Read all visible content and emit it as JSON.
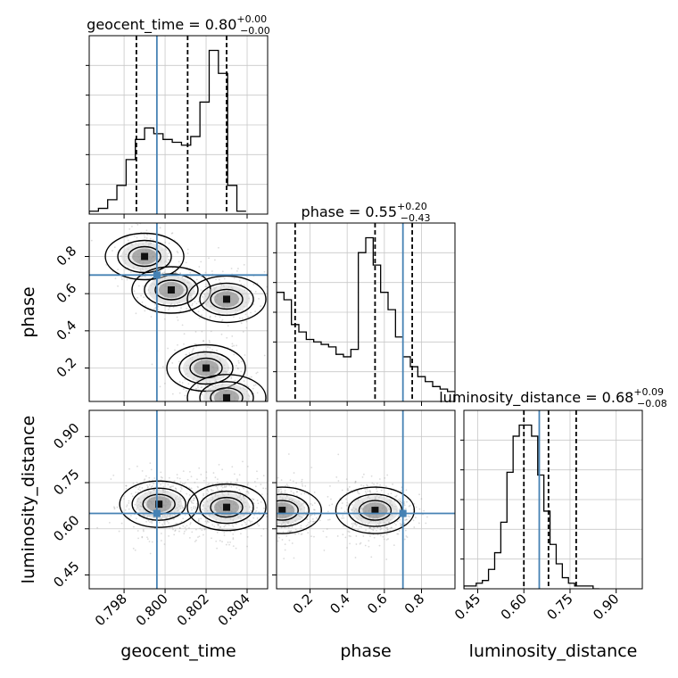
{
  "colors": {
    "truth": "#4682b4",
    "hist": "#000000",
    "grid": "#c8c8c8",
    "quantile": "#000000"
  },
  "chart_data": {
    "type": "corner",
    "parameters": [
      "geocent_time",
      "phase",
      "luminosity_distance"
    ],
    "truths": {
      "geocent_time": 0.7996,
      "phase": 0.7,
      "luminosity_distance": 0.65
    },
    "titles": [
      {
        "param": "geocent_time",
        "text": "geocent_time = 0.80",
        "plus": "+0.00",
        "minus": "−0.00"
      },
      {
        "param": "phase",
        "text": "phase = 0.55",
        "plus": "+0.20",
        "minus": "−0.43"
      },
      {
        "param": "luminosity_distance",
        "text": "luminosity_distance = 0.68",
        "plus": "+0.09",
        "minus": "−0.08"
      }
    ],
    "axis_labels": {
      "x": [
        "geocent_time",
        "phase",
        "luminosity_distance"
      ],
      "y": [
        "phase",
        "luminosity_distance"
      ]
    },
    "ranges": {
      "geocent_time": [
        0.7963,
        0.805
      ],
      "phase": [
        0.02,
        0.98
      ],
      "luminosity_distance": [
        0.405,
        0.985
      ]
    },
    "x_ticks": {
      "geocent_time": [
        {
          "v": 0.798,
          "l": "0.798"
        },
        {
          "v": 0.8,
          "l": "0.800"
        },
        {
          "v": 0.802,
          "l": "0.802"
        },
        {
          "v": 0.804,
          "l": "0.804"
        }
      ],
      "phase": [
        {
          "v": 0.2,
          "l": "0.2"
        },
        {
          "v": 0.4,
          "l": "0.4"
        },
        {
          "v": 0.6,
          "l": "0.6"
        },
        {
          "v": 0.8,
          "l": "0.8"
        }
      ],
      "luminosity_distance": [
        {
          "v": 0.45,
          "l": "0.45"
        },
        {
          "v": 0.6,
          "l": "0.60"
        },
        {
          "v": 0.75,
          "l": "0.75"
        },
        {
          "v": 0.9,
          "l": "0.90"
        }
      ]
    },
    "y_ticks": {
      "phase": [
        {
          "v": 0.2,
          "l": "0.2"
        },
        {
          "v": 0.4,
          "l": "0.4"
        },
        {
          "v": 0.6,
          "l": "0.6"
        },
        {
          "v": 0.8,
          "l": "0.8"
        }
      ],
      "luminosity_distance": [
        {
          "v": 0.45,
          "l": "0.45"
        },
        {
          "v": 0.6,
          "l": "0.60"
        },
        {
          "v": 0.75,
          "l": "0.75"
        },
        {
          "v": 0.9,
          "l": "0.90"
        }
      ]
    },
    "quantiles": {
      "geocent_time": [
        0.7986,
        0.8011,
        0.803
      ],
      "phase": [
        0.12,
        0.55,
        0.75
      ],
      "luminosity_distance": [
        0.6,
        0.68,
        0.77
      ]
    },
    "histograms_1d": {
      "geocent_time": {
        "bin_start": 0.7963,
        "bin_width": 0.00045,
        "values": [
          1,
          2,
          5,
          10,
          19,
          26,
          30,
          28,
          26,
          25,
          24,
          27,
          39,
          57,
          49,
          10,
          1
        ]
      },
      "phase": {
        "bin_start": 0.02,
        "bin_width": 0.04,
        "values": [
          44,
          41,
          31,
          28,
          25,
          24,
          23,
          22,
          19,
          18,
          21,
          60,
          66,
          55,
          44,
          37,
          26,
          18,
          14,
          10,
          8,
          6,
          5,
          4
        ]
      },
      "luminosity_distance": {
        "bin_start": 0.405,
        "bin_width": 0.02,
        "values": [
          1,
          1,
          2,
          3,
          7,
          13,
          24,
          42,
          55,
          59,
          59,
          55,
          41,
          28,
          16,
          9,
          4,
          2,
          1,
          1,
          1,
          0
        ]
      }
    },
    "panels_2d": [
      {
        "x": "geocent_time",
        "y": "phase",
        "modes": [
          [
            0.799,
            0.8
          ],
          [
            0.8003,
            0.62
          ],
          [
            0.803,
            0.57
          ],
          [
            0.802,
            0.2
          ],
          [
            0.803,
            0.04
          ]
        ]
      },
      {
        "x": "geocent_time",
        "y": "luminosity_distance",
        "modes": [
          [
            0.7997,
            0.68
          ],
          [
            0.803,
            0.67
          ]
        ]
      },
      {
        "x": "phase",
        "y": "luminosity_distance",
        "modes": [
          [
            0.05,
            0.66
          ],
          [
            0.55,
            0.66
          ]
        ]
      }
    ],
    "grid": true
  }
}
